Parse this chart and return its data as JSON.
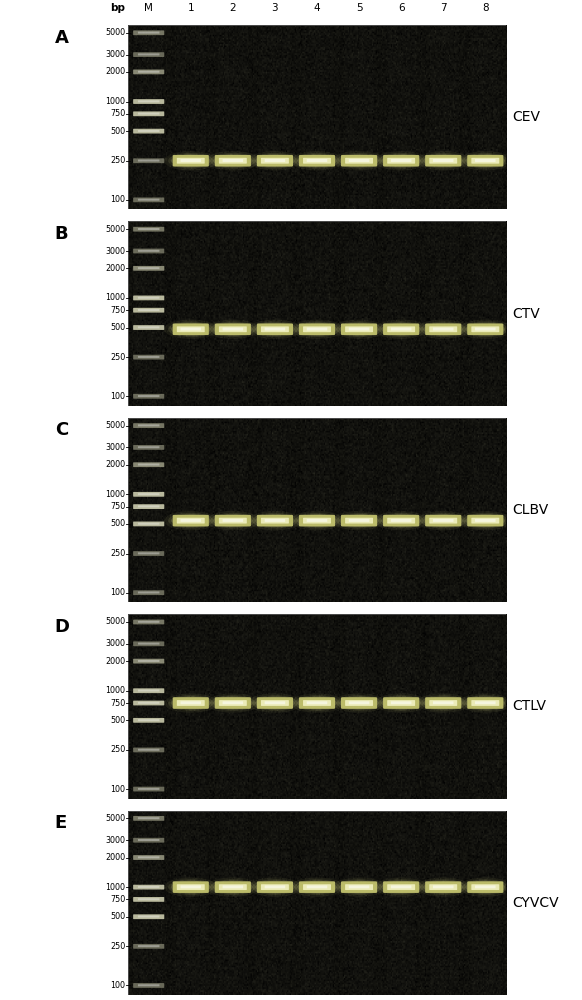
{
  "panels": [
    {
      "label": "A",
      "virus": "CEV",
      "sample_bp": 250,
      "marker_bright_bands": [
        500,
        1000,
        750
      ]
    },
    {
      "label": "B",
      "virus": "CTV",
      "sample_bp": 480,
      "marker_bright_bands": [
        500,
        750,
        1000
      ]
    },
    {
      "label": "C",
      "virus": "CLBV",
      "sample_bp": 540,
      "marker_bright_bands": [
        500,
        750,
        1000
      ]
    },
    {
      "label": "D",
      "virus": "CTLV",
      "sample_bp": 750,
      "marker_bright_bands": [
        750,
        1000,
        500
      ]
    },
    {
      "label": "E",
      "virus": "CYVCV",
      "sample_bp": 1000,
      "marker_bright_bands": [
        1000,
        750,
        500
      ]
    }
  ],
  "bp_values": [
    5000,
    3000,
    2000,
    1000,
    750,
    500,
    250,
    100
  ],
  "bp_labels": [
    "5000",
    "3000",
    "2000",
    "1000",
    "750",
    "500",
    "250",
    "100"
  ],
  "lane_labels": [
    "M",
    "1",
    "2",
    "3",
    "4",
    "5",
    "6",
    "7",
    "8"
  ],
  "bp_min": 80,
  "bp_max": 6000,
  "gel_bg_dark": "#0a0a0a",
  "gel_noise_alpha": 0.18,
  "band_sample_color": "#e0e0a0",
  "band_sample_highlight": "#f8f8d0",
  "marker_color_base": 0.55,
  "fig_bg": "white",
  "label_fontsize": 7.5,
  "panel_label_fontsize": 13,
  "virus_label_fontsize": 10
}
